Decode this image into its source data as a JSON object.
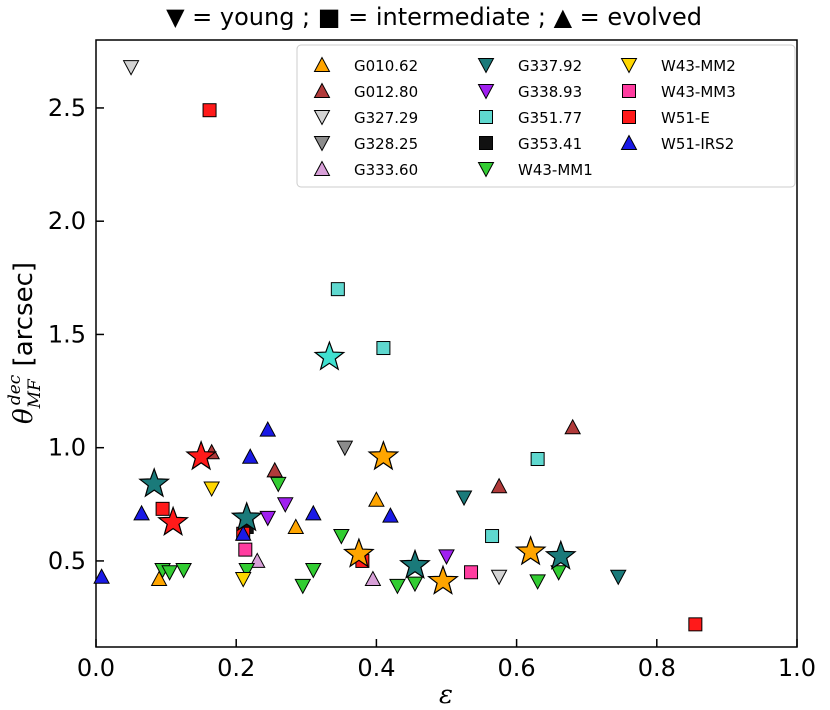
{
  "chart_data": {
    "type": "scatter",
    "title": "▼ = young ; ■ = intermediate ; ▲ = evolved",
    "xlabel": "ε",
    "ylabel_parts": {
      "theta": "θ",
      "sup": "dec",
      "sub": "MF",
      "unit": " [arcsec]"
    },
    "xlim": [
      0.0,
      1.0
    ],
    "ylim": [
      0.12,
      2.8
    ],
    "xticks": [
      "0.0",
      "0.2",
      "0.4",
      "0.6",
      "0.8",
      "1.0"
    ],
    "yticks": [
      "0.5",
      "1.0",
      "1.5",
      "2.0",
      "2.5"
    ],
    "legend_position": "top-right",
    "series": [
      {
        "name": "G010.62",
        "marker": "triangle-up",
        "color": "#ffa500",
        "points": [
          [
            0.09,
            0.42
          ],
          [
            0.285,
            0.65
          ],
          [
            0.4,
            0.77
          ]
        ]
      },
      {
        "name": "G012.80",
        "marker": "triangle-up",
        "color": "#b03a3a",
        "points": [
          [
            0.165,
            0.98
          ],
          [
            0.255,
            0.9
          ],
          [
            0.575,
            0.83
          ],
          [
            0.68,
            1.09
          ]
        ]
      },
      {
        "name": "G327.29",
        "marker": "triangle-down",
        "color": "#d3d3d3",
        "points": [
          [
            0.05,
            2.68
          ],
          [
            0.575,
            0.43
          ]
        ]
      },
      {
        "name": "G328.25",
        "marker": "triangle-down",
        "color": "#8c8c8c",
        "points": [
          [
            0.355,
            1.0
          ]
        ]
      },
      {
        "name": "G333.60",
        "marker": "triangle-up",
        "color": "#d8a0d8",
        "points": [
          [
            0.23,
            0.5
          ],
          [
            0.395,
            0.42
          ]
        ]
      },
      {
        "name": "G337.92",
        "marker": "triangle-down",
        "color": "#1a7a7a",
        "points": [
          [
            0.525,
            0.78
          ],
          [
            0.745,
            0.43
          ]
        ]
      },
      {
        "name": "G338.93",
        "marker": "triangle-down",
        "color": "#a020f0",
        "points": [
          [
            0.245,
            0.69
          ],
          [
            0.27,
            0.75
          ],
          [
            0.5,
            0.52
          ]
        ]
      },
      {
        "name": "G351.77",
        "marker": "square",
        "color": "#5fd8cf",
        "points": [
          [
            0.345,
            1.7
          ],
          [
            0.41,
            1.44
          ],
          [
            0.565,
            0.61
          ],
          [
            0.63,
            0.95
          ]
        ]
      },
      {
        "name": "G353.41",
        "marker": "square",
        "color": "#111111",
        "points": [
          [
            0.215,
            0.65
          ]
        ]
      },
      {
        "name": "W43-MM1",
        "marker": "triangle-down",
        "color": "#32cd32",
        "points": [
          [
            0.095,
            0.46
          ],
          [
            0.105,
            0.45
          ],
          [
            0.125,
            0.46
          ],
          [
            0.215,
            0.46
          ],
          [
            0.26,
            0.84
          ],
          [
            0.295,
            0.39
          ],
          [
            0.31,
            0.46
          ],
          [
            0.35,
            0.61
          ],
          [
            0.43,
            0.39
          ],
          [
            0.455,
            0.4
          ],
          [
            0.63,
            0.41
          ],
          [
            0.66,
            0.45
          ]
        ]
      },
      {
        "name": "W43-MM2",
        "marker": "triangle-down",
        "color": "#ffd700",
        "points": [
          [
            0.165,
            0.82
          ],
          [
            0.21,
            0.42
          ]
        ]
      },
      {
        "name": "W43-MM3",
        "marker": "square",
        "color": "#ff3da0",
        "points": [
          [
            0.213,
            0.55
          ],
          [
            0.535,
            0.45
          ]
        ]
      },
      {
        "name": "W51-E",
        "marker": "square",
        "color": "#ff1a1a",
        "points": [
          [
            0.162,
            2.49
          ],
          [
            0.095,
            0.73
          ],
          [
            0.21,
            0.62
          ],
          [
            0.38,
            0.5
          ],
          [
            0.855,
            0.22
          ]
        ]
      },
      {
        "name": "W51-IRS2",
        "marker": "triangle-up",
        "color": "#1a1ae6",
        "points": [
          [
            0.008,
            0.43
          ],
          [
            0.065,
            0.71
          ],
          [
            0.21,
            0.62
          ],
          [
            0.22,
            0.96
          ],
          [
            0.245,
            1.08
          ],
          [
            0.31,
            0.71
          ],
          [
            0.42,
            0.7
          ]
        ]
      }
    ],
    "stars": [
      {
        "color": "#ff1a1a",
        "x": 0.15,
        "y": 0.96
      },
      {
        "color": "#ff1a1a",
        "x": 0.11,
        "y": 0.67
      },
      {
        "color": "#1a7a7a",
        "x": 0.083,
        "y": 0.84
      },
      {
        "color": "#1a7a7a",
        "x": 0.215,
        "y": 0.69
      },
      {
        "color": "#40e0d0",
        "x": 0.333,
        "y": 1.4
      },
      {
        "color": "#ffa500",
        "x": 0.41,
        "y": 0.96
      },
      {
        "color": "#ffa500",
        "x": 0.375,
        "y": 0.53
      },
      {
        "color": "#1a7a7a",
        "x": 0.455,
        "y": 0.48
      },
      {
        "color": "#ffa500",
        "x": 0.495,
        "y": 0.41
      },
      {
        "color": "#ffa500",
        "x": 0.62,
        "y": 0.54
      },
      {
        "color": "#1a7a7a",
        "x": 0.663,
        "y": 0.52
      }
    ]
  }
}
